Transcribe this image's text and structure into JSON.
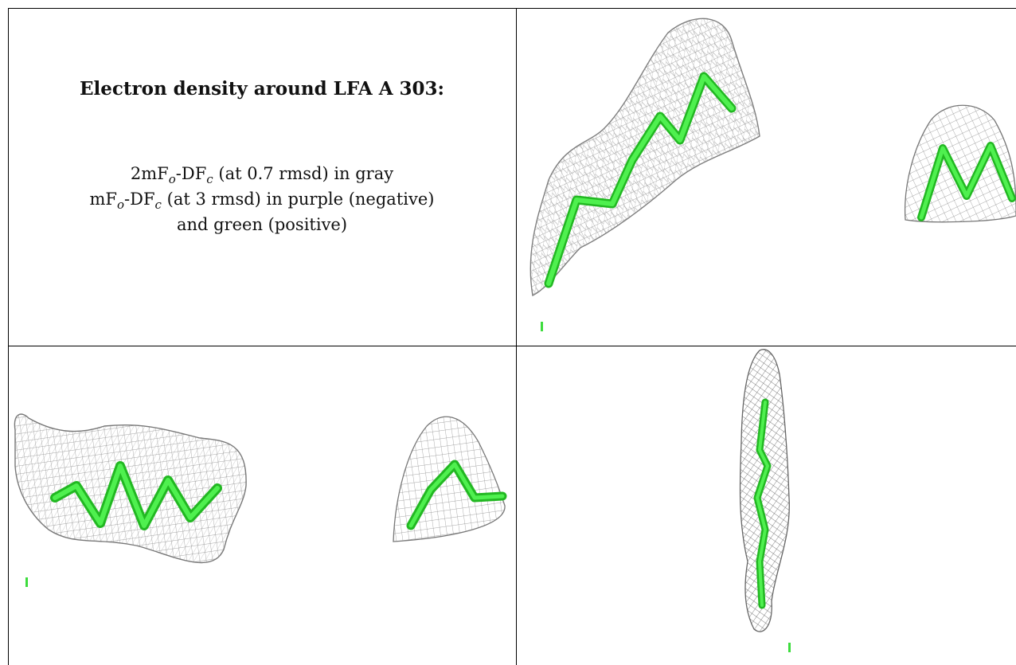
{
  "caption": {
    "title": "Electron density around LFA A 303:",
    "line1": {
      "a": "2mF",
      "b": "o",
      "c": "-DF",
      "d": "c",
      "e": " (at 0.7 rmsd) in gray"
    },
    "line2": {
      "a": "mF",
      "b": "o",
      "c": "-DF",
      "d": "c",
      "e": " (at 3 rmsd) in purple (negative)"
    },
    "line3": "and green (positive)"
  },
  "colors": {
    "mesh": "#8a8a8a",
    "mesh_dark": "#555555",
    "ligand": "#3ddc3d",
    "ligand_edge": "#22b822",
    "border": "#000000"
  },
  "panels": [
    {
      "id": "top-right",
      "view": "density view 1"
    },
    {
      "id": "bottom-left",
      "view": "density view 2"
    },
    {
      "id": "bottom-right",
      "view": "density view 3"
    }
  ]
}
